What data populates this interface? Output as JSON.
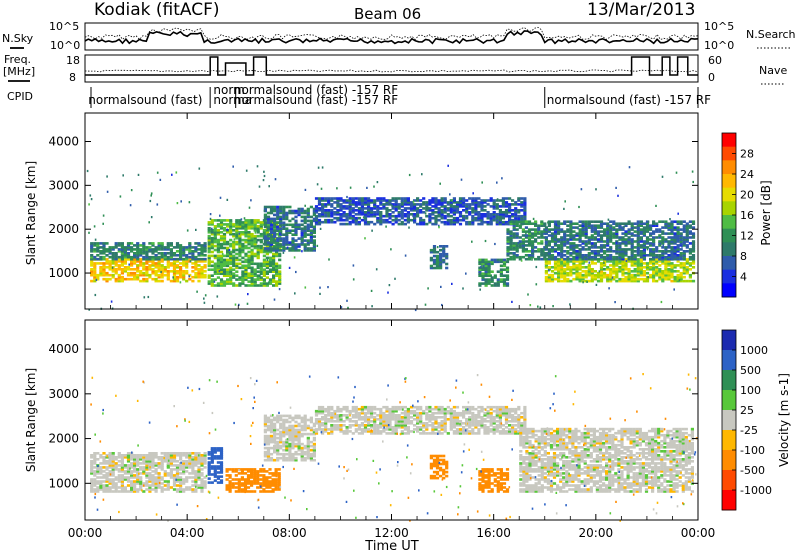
{
  "header": {
    "station": "Kodiak (fitACF)",
    "beam": "Beam 06",
    "date": "13/Mar/2013"
  },
  "noise_panel": {
    "left_label": "N.Sky",
    "right_label": "N.Search",
    "left_ticks": [
      "10^5",
      "10^0"
    ],
    "right_ticks": [
      "10^5",
      "10^0"
    ]
  },
  "freq_panel": {
    "left_label_1": "Freq.",
    "left_label_2": "[MHz]",
    "right_label": "Nave",
    "left_ticks": [
      "18",
      "8"
    ],
    "right_ticks": [
      "60",
      "0"
    ]
  },
  "cpid": {
    "label": "CPID",
    "segments": [
      {
        "hour": 0.05,
        "row": 1,
        "text": "normalsound (fast)"
      },
      {
        "hour": 4.95,
        "row": 0,
        "text": "norm"
      },
      {
        "hour": 4.95,
        "row": 1,
        "text": "norma"
      },
      {
        "hour": 5.75,
        "row": 0,
        "text": "normalsound (fast) -157 RF"
      },
      {
        "hour": 5.75,
        "row": 1,
        "text": "normalsound (fast) -157 RF"
      },
      {
        "hour": 18.0,
        "row": 1,
        "text": "normalsound (fast) -157 RF"
      }
    ]
  },
  "time_axis": {
    "label": "Time UT",
    "ticks": [
      "00:00",
      "04:00",
      "08:00",
      "12:00",
      "16:00",
      "20:00",
      "00:00"
    ]
  },
  "chart_data": [
    {
      "type": "heatmap",
      "name": "power",
      "x_unit": "hours UT",
      "xlim": [
        0,
        24
      ],
      "ylabel": "Slant Range [km]",
      "ylim": [
        180,
        4650
      ],
      "yticks": [
        1000,
        2000,
        3000,
        4000
      ],
      "colorbar_label": "Power [dB]",
      "colorbar_ticks": [
        "28",
        "24",
        "20",
        "16",
        "12",
        "8",
        "4"
      ],
      "colorbar_colors": [
        "#ff0000",
        "#ff4a00",
        "#ff8c00",
        "#ffb800",
        "#e6dc00",
        "#a8d400",
        "#4fbc44",
        "#2f8f55",
        "#2e7a6a",
        "#2f5cab",
        "#1a2fe0",
        "#0000ff"
      ],
      "regions": [
        {
          "x": [
            0.2,
            4.7
          ],
          "range": [
            800,
            1300
          ],
          "power": 22
        },
        {
          "x": [
            0.2,
            4.7
          ],
          "range": [
            1300,
            1700
          ],
          "power": 10
        },
        {
          "x": [
            4.8,
            7.6
          ],
          "range": [
            700,
            2200
          ],
          "power": 14
        },
        {
          "x": [
            7.0,
            9.0
          ],
          "range": [
            1500,
            2500
          ],
          "power": 8
        },
        {
          "x": [
            9.0,
            17.2
          ],
          "range": [
            2100,
            2700
          ],
          "power": 6
        },
        {
          "x": [
            13.5,
            14.2
          ],
          "range": [
            1100,
            1600
          ],
          "power": 8
        },
        {
          "x": [
            15.4,
            16.6
          ],
          "range": [
            700,
            1300
          ],
          "power": 10
        },
        {
          "x": [
            16.5,
            18.0
          ],
          "range": [
            1300,
            2200
          ],
          "power": 10
        },
        {
          "x": [
            18.0,
            23.8
          ],
          "range": [
            800,
            1300
          ],
          "power": 18
        },
        {
          "x": [
            18.0,
            23.8
          ],
          "range": [
            1300,
            2200
          ],
          "power": 8
        }
      ]
    },
    {
      "type": "heatmap",
      "name": "velocity",
      "x_unit": "hours UT",
      "xlim": [
        0,
        24
      ],
      "ylabel": "Slant Range [km]",
      "ylim": [
        180,
        4650
      ],
      "yticks": [
        1000,
        2000,
        3000,
        4000
      ],
      "colorbar_label": "Velocity [m s-1]",
      "colorbar_ticks": [
        "1000",
        "500",
        "100",
        "25",
        "-25",
        "-100",
        "-500",
        "-1000"
      ],
      "colorbar_colors": [
        "#1c2bb0",
        "#2c62c6",
        "#2f8f55",
        "#58c83a",
        "#c8c8c0",
        "#ffb800",
        "#ff8c00",
        "#ff4a00",
        "#ff0000"
      ],
      "regions": [
        {
          "x": [
            0.2,
            4.7
          ],
          "range": [
            800,
            1700
          ],
          "velocity": 0
        },
        {
          "x": [
            4.8,
            5.4
          ],
          "range": [
            1000,
            1800
          ],
          "velocity": 150
        },
        {
          "x": [
            5.5,
            7.6
          ],
          "range": [
            800,
            1300
          ],
          "velocity": -200
        },
        {
          "x": [
            7.0,
            9.0
          ],
          "range": [
            1500,
            2500
          ],
          "velocity": 0
        },
        {
          "x": [
            9.0,
            17.2
          ],
          "range": [
            2100,
            2700
          ],
          "velocity": 0
        },
        {
          "x": [
            13.5,
            14.2
          ],
          "range": [
            1100,
            1600
          ],
          "velocity": -200
        },
        {
          "x": [
            15.4,
            16.6
          ],
          "range": [
            800,
            1300
          ],
          "velocity": -200
        },
        {
          "x": [
            17.0,
            23.8
          ],
          "range": [
            800,
            2200
          ],
          "velocity": 0
        }
      ]
    }
  ]
}
